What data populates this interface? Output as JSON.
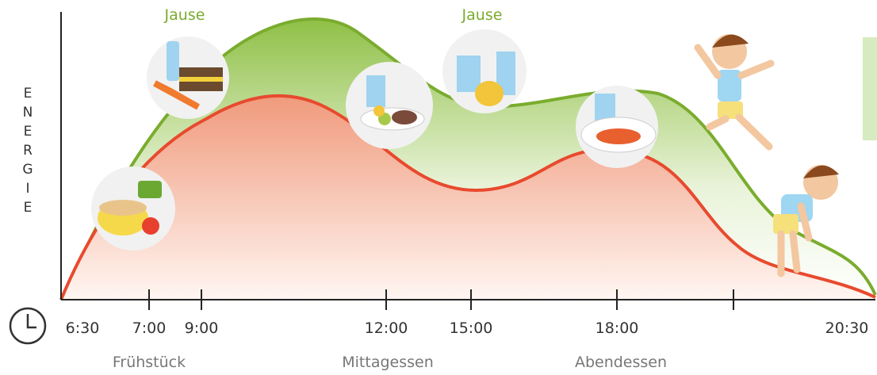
{
  "y_axis_label": "ENERGIE",
  "snack_labels": [
    "Jause",
    "Jause"
  ],
  "time_ticks": [
    "6:30",
    "7:00",
    "9:00",
    "12:00",
    "15:00",
    "18:00",
    "20:30"
  ],
  "meals": [
    "Frühstück",
    "Mittagessen",
    "Abendessen"
  ]
}
